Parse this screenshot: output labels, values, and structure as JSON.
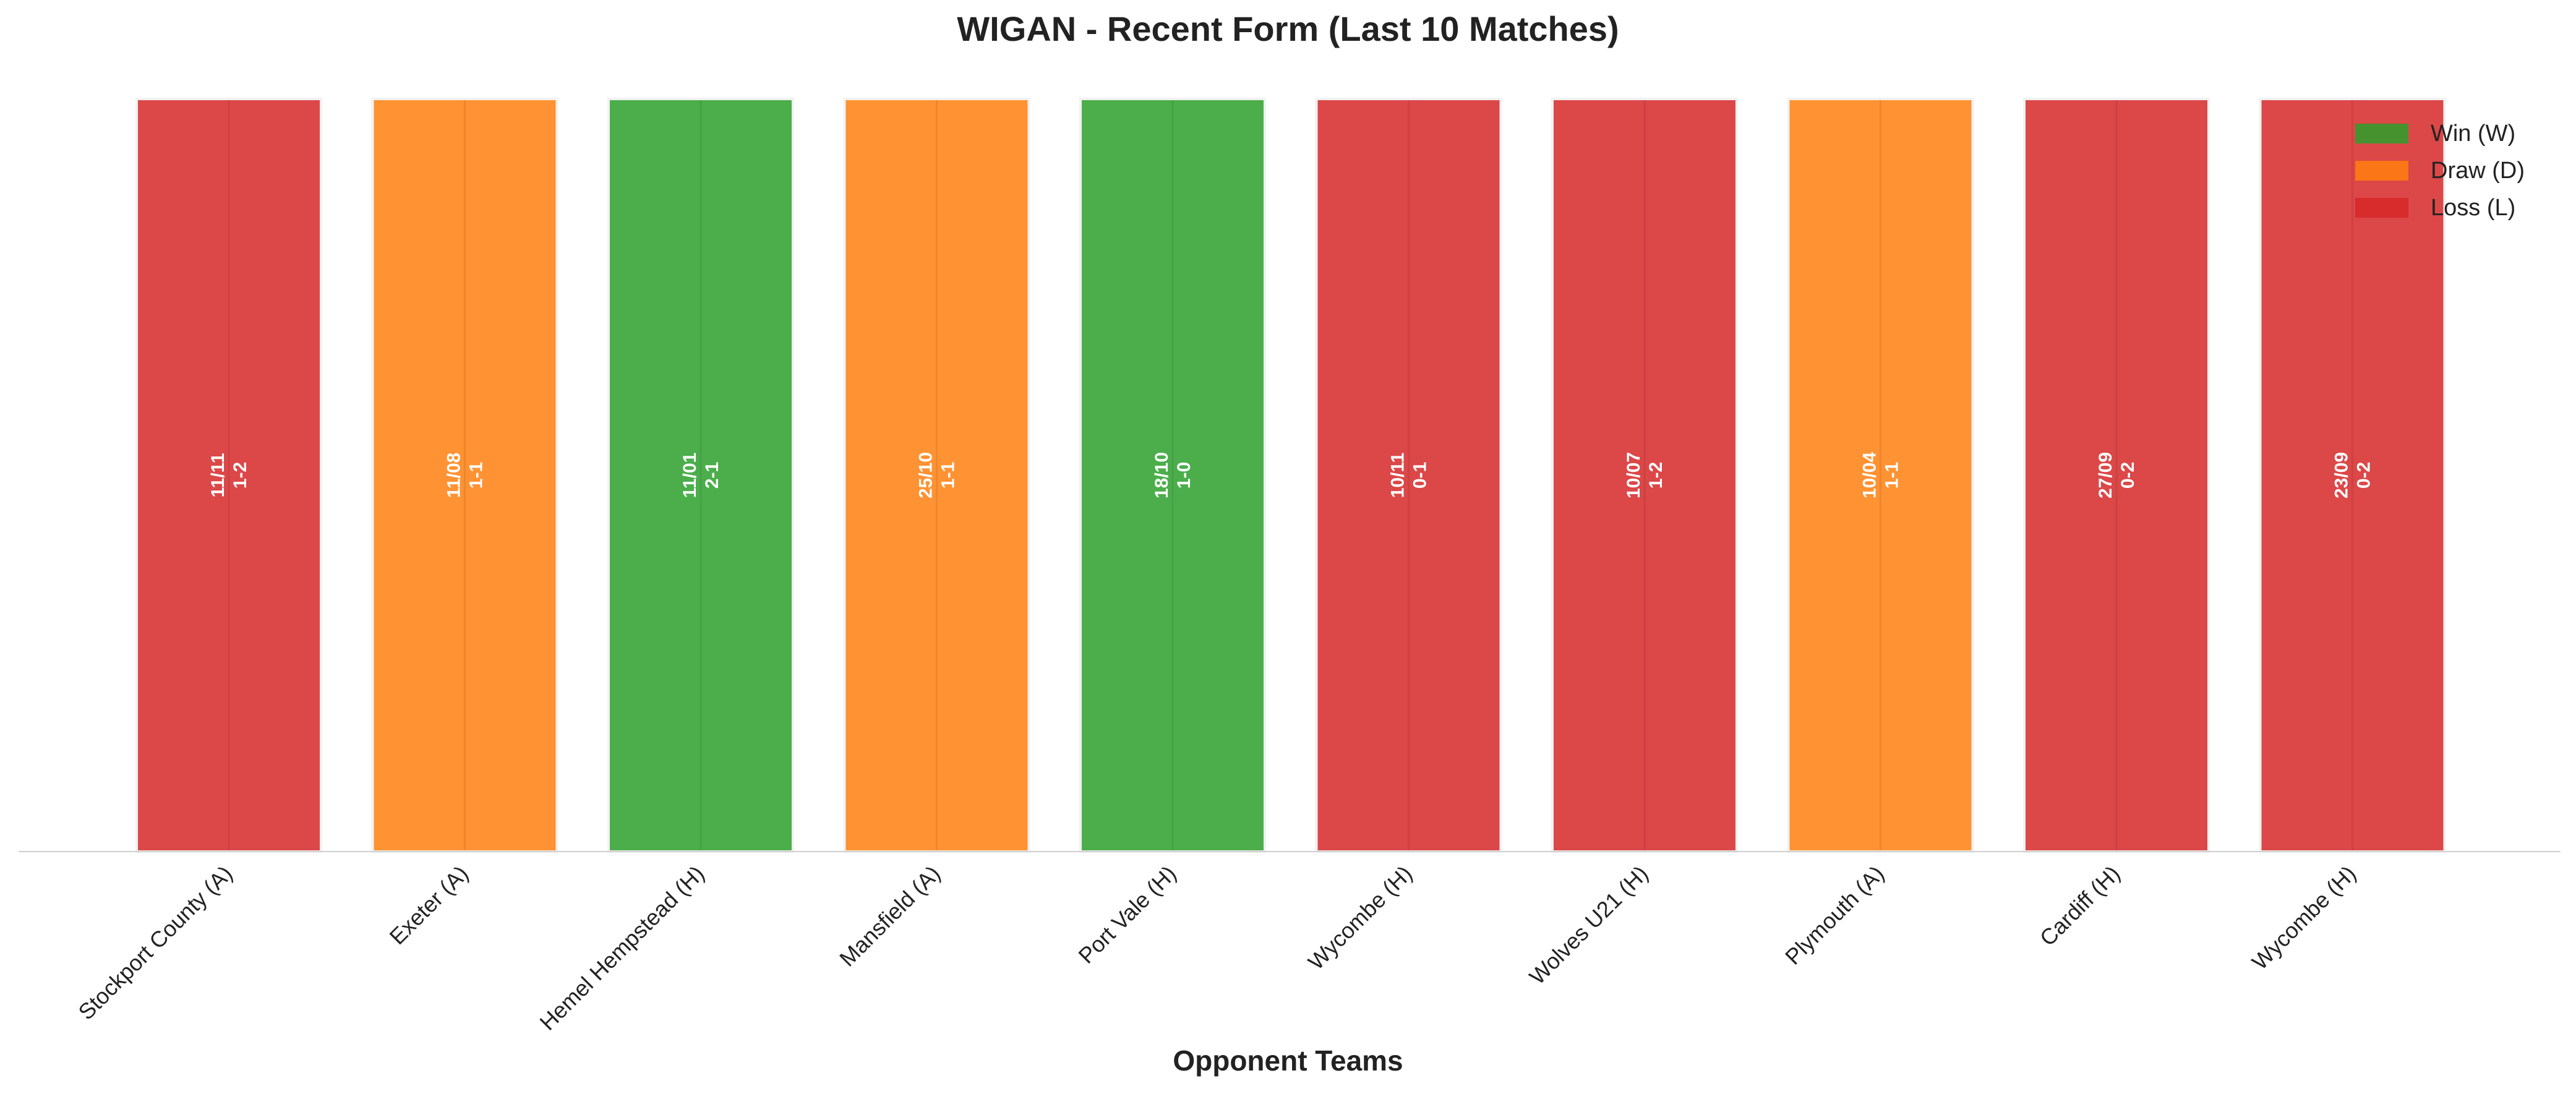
{
  "chart_data": {
    "type": "bar",
    "title": "WIGAN - Recent Form (Last 10 Matches)",
    "xlabel": "Opponent Teams",
    "ylabel": "",
    "categories": [
      "Stockport County (A)",
      "Exeter (A)",
      "Hemel Hempstead (H)",
      "Mansfield (A)",
      "Port Vale (H)",
      "Wycombe (H)",
      "Wolves U21 (H)",
      "Plymouth (A)",
      "Cardiff (H)",
      "Wycombe (H)"
    ],
    "results": [
      "L",
      "D",
      "W",
      "D",
      "W",
      "L",
      "L",
      "D",
      "L",
      "L"
    ],
    "dates": [
      "11/11",
      "11/08",
      "11/01",
      "25/10",
      "18/10",
      "10/11",
      "10/07",
      "10/04",
      "27/09",
      "23/09"
    ],
    "scores": [
      "1-2",
      "1-1",
      "2-1",
      "1-1",
      "1-0",
      "0-1",
      "1-2",
      "1-1",
      "0-2",
      "0-2"
    ],
    "values": [
      1,
      1,
      1,
      1,
      1,
      1,
      1,
      1,
      1,
      1
    ],
    "ylim": [
      0,
      1
    ],
    "grid": false,
    "legend_position": "top-right",
    "legend": [
      {
        "key": "W",
        "label": "Win (W)",
        "color": "#2ca02c"
      },
      {
        "key": "D",
        "label": "Draw (D)",
        "color": "#ff7f0e"
      },
      {
        "key": "L",
        "label": "Loss (L)",
        "color": "#d62728"
      }
    ]
  }
}
